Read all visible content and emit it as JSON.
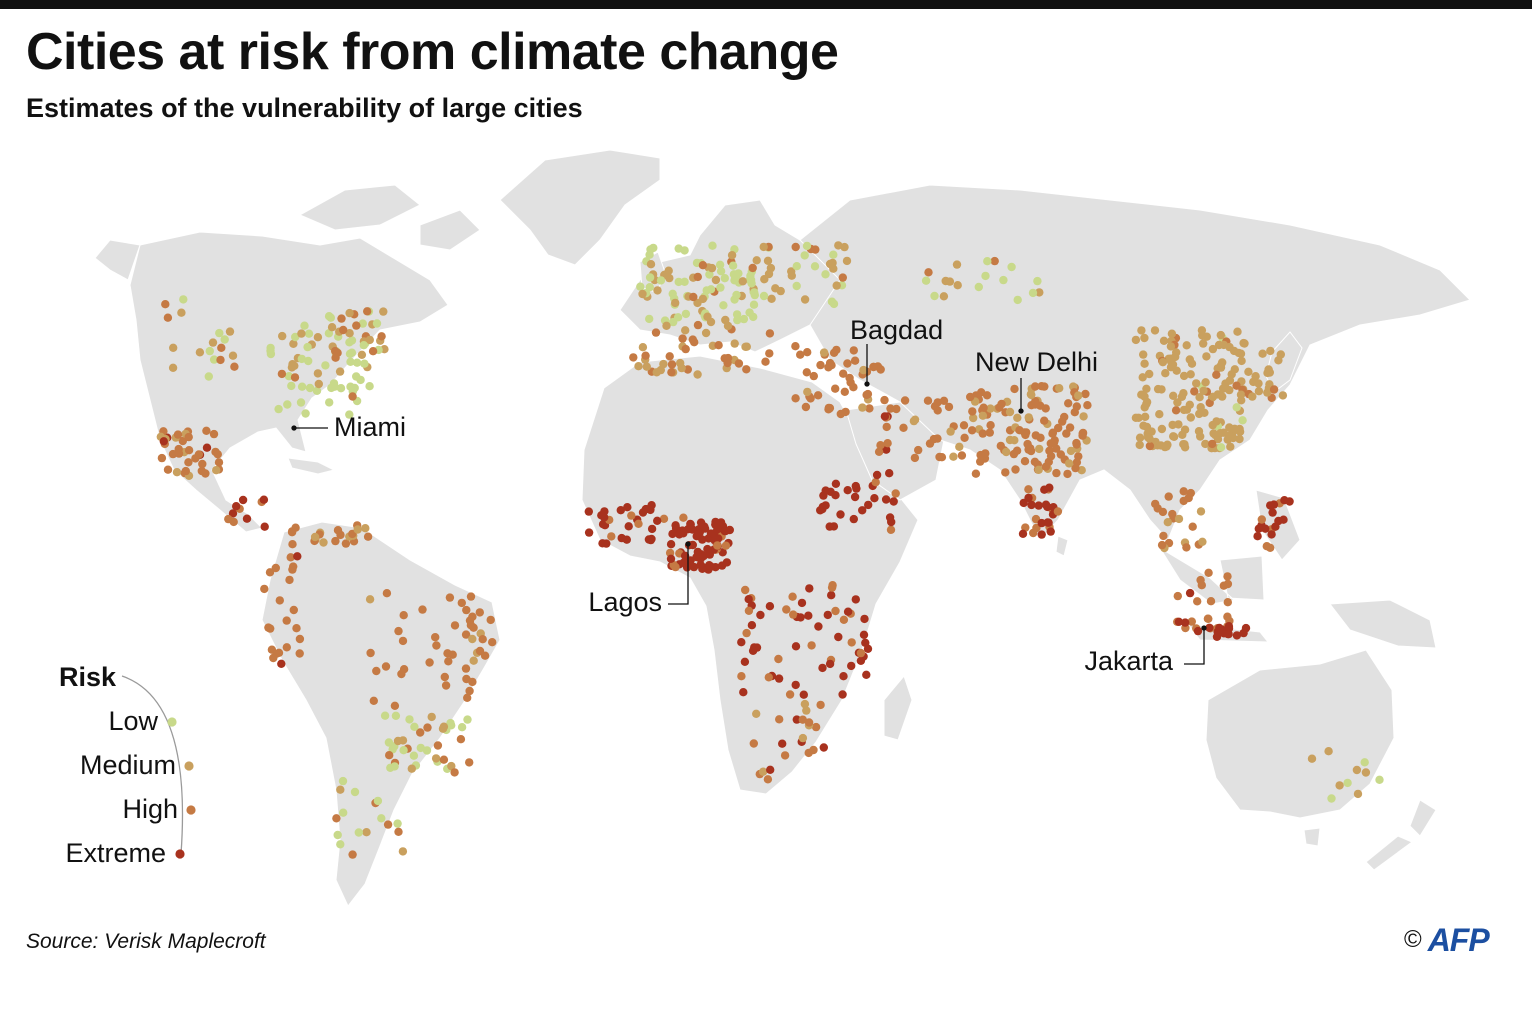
{
  "title": "Cities at risk from climate change",
  "subtitle": "Estimates of the vulnerability of large cities",
  "source": "Source: Verisk Maplecroft",
  "credit": {
    "copyright": "©",
    "agency": "AFP"
  },
  "legend": {
    "title": "Risk",
    "levels": [
      {
        "label": "Low",
        "color": "#c8d98a"
      },
      {
        "label": "Medium",
        "color": "#c9a05e"
      },
      {
        "label": "High",
        "color": "#c57a44"
      },
      {
        "label": "Extreme",
        "color": "#a8321e"
      }
    ]
  },
  "callouts": [
    {
      "label": "Miami"
    },
    {
      "label": "Bagdad"
    },
    {
      "label": "New Delhi"
    },
    {
      "label": "Lagos"
    },
    {
      "label": "Jakarta"
    }
  ],
  "colors": {
    "land": "#e1e1e1",
    "ocean": "#ffffff",
    "border": "#ffffff",
    "ink": "#111111"
  }
}
